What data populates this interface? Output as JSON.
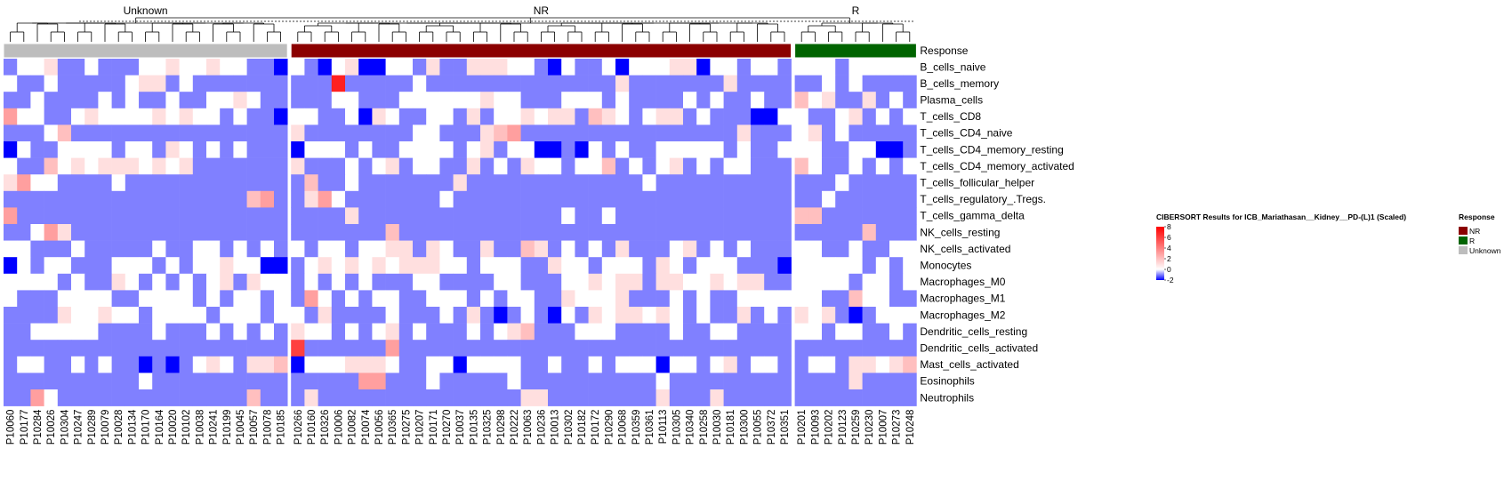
{
  "chart_data": {
    "type": "heatmap",
    "title": "",
    "groups": [
      {
        "name": "Unknown",
        "color": "#bdbdbd",
        "samples": [
          "P10060",
          "P10177",
          "P10284",
          "P10026",
          "P10304",
          "P10247",
          "P10289",
          "P10079",
          "P10028",
          "P10134",
          "P10170",
          "P10164",
          "P10020",
          "P10102",
          "P10038",
          "P10241",
          "P10199",
          "P10045",
          "P10057",
          "P10078",
          "P10185"
        ]
      },
      {
        "name": "NR",
        "color": "#8b0000",
        "samples": [
          "P10266",
          "P10160",
          "P10326",
          "P10006",
          "P10082",
          "P10074",
          "P10056",
          "P10365",
          "P10275",
          "P10207",
          "P10171",
          "P10270",
          "P10037",
          "P10135",
          "P10325",
          "P10298",
          "P10222",
          "P10063",
          "P10236",
          "P10013",
          "P10302",
          "P10182",
          "P10172",
          "P10290",
          "P10068",
          "P10359",
          "P10361",
          "P10113",
          "P10305",
          "P10340",
          "P10258",
          "P10030",
          "P10181",
          "P10300",
          "P10055",
          "P10372",
          "P10351"
        ]
      },
      {
        "name": "R",
        "color": "#006400",
        "samples": [
          "P10201",
          "P10093",
          "P10202",
          "P10123",
          "P10259",
          "P10230",
          "P10007",
          "P10273",
          "P10248"
        ]
      }
    ],
    "annotation_row_label": "Response",
    "rows": [
      "B_cells_naive",
      "B_cells_memory",
      "Plasma_cells",
      "T_cells_CD8",
      "T_cells_CD4_naive",
      "T_cells_CD4_memory_resting",
      "T_cells_CD4_memory_activated",
      "T_cells_follicular_helper",
      "T_cells_regulatory_.Tregs.",
      "T_cells_gamma_delta",
      "NK_cells_resting",
      "NK_cells_activated",
      "Monocytes",
      "Macrophages_M0",
      "Macrophages_M1",
      "Macrophages_M2",
      "Dendritic_cells_resting",
      "Dendritic_cells_activated",
      "Mast_cells_activated",
      "Eosinophils",
      "Neutrophils"
    ],
    "values": [
      [
        -1,
        0,
        0,
        1,
        -1,
        -1,
        0,
        -1,
        -1,
        -1,
        0,
        0,
        1,
        0,
        0,
        1,
        0,
        0,
        -1,
        -1,
        -2,
        0,
        -1,
        -2,
        0,
        1,
        -2,
        -2,
        0,
        0,
        -1,
        1,
        -1,
        -1,
        1,
        1,
        1,
        0,
        0,
        -1,
        -2,
        0,
        -1,
        -1,
        0,
        -2,
        0,
        0,
        0,
        1,
        1,
        -2,
        0,
        0,
        -1,
        0,
        0,
        -1,
        0,
        0,
        0,
        -1,
        0,
        0,
        0,
        0,
        0
      ],
      [
        0,
        -1,
        -1,
        0,
        -1,
        -1,
        -1,
        -1,
        -1,
        0,
        1,
        1,
        -1,
        0,
        -1,
        -1,
        -1,
        -1,
        -1,
        -1,
        -1,
        -1,
        -1,
        -1,
        7,
        -1,
        -1,
        -1,
        -1,
        -1,
        0,
        -1,
        -1,
        -1,
        -1,
        -1,
        -1,
        -1,
        -1,
        -1,
        -1,
        -1,
        -1,
        -1,
        -1,
        1,
        -1,
        -1,
        -1,
        -1,
        -1,
        -1,
        -1,
        1,
        -1,
        -1,
        -1,
        -1,
        -1,
        -1,
        0,
        -1,
        0,
        -1,
        -1,
        -1,
        -1
      ],
      [
        -1,
        -1,
        0,
        -1,
        -1,
        -1,
        -1,
        0,
        -1,
        0,
        -1,
        -1,
        0,
        -1,
        -1,
        0,
        0,
        1,
        0,
        -1,
        -1,
        -1,
        -1,
        -1,
        0,
        0,
        -1,
        -1,
        -1,
        0,
        0,
        0,
        0,
        0,
        0,
        1,
        0,
        0,
        -1,
        -1,
        -1,
        0,
        0,
        0,
        -1,
        0,
        -1,
        -1,
        -1,
        -1,
        0,
        -1,
        0,
        -1,
        -1,
        0,
        -1,
        -1,
        2,
        0,
        1,
        -1,
        -1,
        1,
        -1,
        0,
        -1
      ],
      [
        3,
        0,
        0,
        -1,
        -1,
        0,
        1,
        0,
        0,
        0,
        0,
        1,
        0,
        1,
        0,
        0,
        -1,
        0,
        -1,
        -1,
        -2,
        0,
        0,
        -1,
        -1,
        0,
        -2,
        1,
        0,
        -1,
        -1,
        0,
        0,
        -1,
        1,
        -1,
        0,
        0,
        1,
        0,
        1,
        1,
        -1,
        2,
        1,
        0,
        -1,
        0,
        1,
        1,
        -1,
        0,
        -1,
        -1,
        -1,
        -2,
        -2,
        0,
        0,
        -1,
        -1,
        0,
        1,
        -1,
        0,
        -1,
        0
      ],
      [
        -1,
        -1,
        -1,
        0,
        2,
        -1,
        -1,
        -1,
        -1,
        -1,
        -1,
        -1,
        -1,
        -1,
        -1,
        -1,
        -1,
        -1,
        -1,
        -1,
        -1,
        1,
        -1,
        -1,
        -1,
        -1,
        -1,
        -1,
        -1,
        -1,
        0,
        0,
        -1,
        -1,
        -1,
        1,
        2,
        3,
        -1,
        -1,
        -1,
        -1,
        -1,
        -1,
        -1,
        -1,
        -1,
        -1,
        -1,
        -1,
        -1,
        -1,
        -1,
        -1,
        1,
        -1,
        -1,
        -1,
        0,
        1,
        -1,
        0,
        -1,
        -1,
        -1,
        -1,
        -1
      ],
      [
        -2,
        0,
        -1,
        -1,
        0,
        0,
        0,
        0,
        -1,
        0,
        0,
        -1,
        1,
        0,
        -1,
        0,
        -1,
        0,
        -1,
        -1,
        -1,
        -2,
        0,
        0,
        0,
        -1,
        0,
        -1,
        -1,
        0,
        0,
        0,
        0,
        -1,
        0,
        1,
        -1,
        0,
        0,
        -2,
        -2,
        -1,
        -2,
        0,
        -1,
        0,
        -1,
        -1,
        0,
        0,
        0,
        0,
        0,
        -1,
        0,
        -1,
        -1,
        0,
        0,
        0,
        -1,
        -1,
        0,
        0,
        -2,
        -2,
        -1
      ],
      [
        0,
        -1,
        -1,
        2,
        0,
        1,
        0,
        1,
        1,
        1,
        0,
        1,
        0,
        1,
        -1,
        -1,
        -1,
        -1,
        -1,
        -1,
        -1,
        1,
        -1,
        -1,
        -1,
        0,
        -1,
        0,
        1,
        -1,
        0,
        0,
        -1,
        -1,
        1,
        -1,
        0,
        -1,
        1,
        0,
        0,
        -1,
        0,
        0,
        2,
        -1,
        0,
        -1,
        0,
        1,
        -1,
        0,
        -1,
        0,
        0,
        -1,
        -1,
        -1,
        2,
        0,
        -1,
        -1,
        0,
        -1,
        0,
        -1,
        0
      ],
      [
        1,
        3,
        0,
        0,
        -1,
        -1,
        -1,
        -1,
        0,
        -1,
        -1,
        -1,
        -1,
        -1,
        -1,
        -1,
        -1,
        -1,
        -1,
        -1,
        -1,
        -1,
        2,
        -1,
        -1,
        0,
        -1,
        -1,
        -1,
        -1,
        -1,
        -1,
        -1,
        1,
        -1,
        -1,
        -1,
        -1,
        -1,
        -1,
        -1,
        -1,
        -1,
        -1,
        -1,
        -1,
        -1,
        0,
        -1,
        -1,
        -1,
        -1,
        -1,
        -1,
        -1,
        -1,
        -1,
        -1,
        -1,
        -1,
        -1,
        0,
        -1,
        -1,
        -1,
        -1,
        -1
      ],
      [
        -1,
        -1,
        -1,
        -1,
        -1,
        -1,
        -1,
        -1,
        -1,
        -1,
        -1,
        -1,
        -1,
        -1,
        -1,
        -1,
        -1,
        -1,
        2,
        3,
        -1,
        -1,
        1,
        3,
        0,
        -1,
        -1,
        -1,
        -1,
        -1,
        -1,
        -1,
        0,
        -1,
        -1,
        -1,
        -1,
        -1,
        -1,
        -1,
        -1,
        -1,
        -1,
        -1,
        -1,
        -1,
        -1,
        -1,
        -1,
        -1,
        -1,
        -1,
        -1,
        -1,
        -1,
        -1,
        -1,
        -1,
        -1,
        -1,
        0,
        -1,
        -1,
        -1,
        -1,
        -1,
        -1
      ],
      [
        3,
        -1,
        -1,
        -1,
        -1,
        -1,
        -1,
        -1,
        -1,
        -1,
        -1,
        -1,
        -1,
        -1,
        -1,
        -1,
        -1,
        -1,
        -1,
        -1,
        -1,
        -1,
        -1,
        -1,
        -1,
        1,
        -1,
        -1,
        -1,
        -1,
        -1,
        -1,
        -1,
        -1,
        -1,
        -1,
        -1,
        -1,
        -1,
        -1,
        -1,
        0,
        -1,
        -1,
        0,
        -1,
        -1,
        -1,
        -1,
        -1,
        -1,
        -1,
        -1,
        -1,
        -1,
        -1,
        -1,
        -1,
        2,
        2,
        -1,
        -1,
        -1,
        -1,
        -1,
        -1,
        -1
      ],
      [
        -1,
        -1,
        0,
        3,
        1,
        -1,
        -1,
        -1,
        -1,
        -1,
        -1,
        -1,
        -1,
        -1,
        -1,
        -1,
        -1,
        -1,
        -1,
        -1,
        -1,
        -1,
        -1,
        -1,
        -1,
        -1,
        -1,
        -1,
        2,
        -1,
        -1,
        -1,
        -1,
        -1,
        -1,
        -1,
        -1,
        -1,
        -1,
        -1,
        -1,
        -1,
        -1,
        -1,
        -1,
        -1,
        -1,
        -1,
        -1,
        -1,
        -1,
        -1,
        -1,
        -1,
        -1,
        -1,
        -1,
        -1,
        -1,
        -1,
        -1,
        -1,
        -1,
        2,
        -1,
        -1,
        -1
      ],
      [
        0,
        0,
        -1,
        -1,
        -1,
        0,
        -1,
        -1,
        -1,
        -1,
        -1,
        0,
        -1,
        -1,
        0,
        0,
        -1,
        0,
        -1,
        0,
        -1,
        0,
        -1,
        0,
        0,
        -1,
        0,
        0,
        1,
        1,
        -1,
        1,
        0,
        -1,
        -1,
        1,
        -1,
        -1,
        2,
        1,
        -1,
        0,
        -1,
        0,
        -1,
        1,
        -1,
        -1,
        -1,
        0,
        1,
        -1,
        0,
        -1,
        0,
        -1,
        -1,
        -1,
        0,
        0,
        -1,
        -1,
        0,
        -1,
        -1,
        0,
        0
      ],
      [
        -2,
        0,
        -1,
        0,
        0,
        -1,
        -1,
        -1,
        0,
        0,
        0,
        -1,
        0,
        -1,
        0,
        0,
        1,
        0,
        0,
        -2,
        -2,
        -1,
        0,
        1,
        0,
        1,
        0,
        1,
        0,
        1,
        1,
        1,
        0,
        0,
        -1,
        0,
        0,
        0,
        -1,
        -1,
        1,
        0,
        0,
        -1,
        0,
        0,
        0,
        -1,
        1,
        0,
        -1,
        0,
        0,
        0,
        -1,
        -1,
        -1,
        -2,
        0,
        0,
        0,
        0,
        0,
        -1,
        0,
        -1,
        0
      ],
      [
        0,
        0,
        0,
        0,
        -1,
        0,
        -1,
        -1,
        1,
        0,
        -1,
        0,
        -1,
        0,
        -1,
        0,
        1,
        -1,
        1,
        0,
        0,
        -1,
        0,
        -1,
        0,
        -1,
        0,
        -1,
        -1,
        -1,
        0,
        0,
        -1,
        -1,
        -1,
        -1,
        0,
        0,
        -1,
        -1,
        -1,
        0,
        0,
        1,
        0,
        1,
        1,
        -1,
        1,
        1,
        0,
        0,
        1,
        0,
        1,
        1,
        -1,
        -1,
        0,
        0,
        0,
        0,
        -1,
        0,
        0,
        -1,
        0
      ],
      [
        0,
        -1,
        -1,
        -1,
        0,
        0,
        0,
        0,
        -1,
        -1,
        0,
        0,
        0,
        0,
        -1,
        0,
        -1,
        0,
        0,
        -1,
        0,
        -1,
        3,
        0,
        -1,
        0,
        -1,
        0,
        0,
        -1,
        -1,
        0,
        0,
        0,
        -1,
        0,
        -1,
        0,
        0,
        -1,
        -1,
        1,
        0,
        0,
        0,
        1,
        -1,
        -1,
        -1,
        0,
        -1,
        0,
        -1,
        -1,
        0,
        0,
        0,
        0,
        0,
        0,
        -1,
        -1,
        2,
        0,
        0,
        -1,
        -1
      ],
      [
        -1,
        -1,
        -1,
        -1,
        1,
        0,
        0,
        1,
        0,
        0,
        -1,
        0,
        0,
        0,
        0,
        -1,
        0,
        0,
        0,
        -1,
        0,
        0,
        -1,
        1,
        -1,
        -1,
        -1,
        -1,
        0,
        -1,
        -1,
        -1,
        0,
        -1,
        1,
        -1,
        -2,
        -1,
        0,
        -1,
        -2,
        0,
        -1,
        1,
        0,
        1,
        1,
        0,
        1,
        0,
        -1,
        0,
        -1,
        -1,
        1,
        -1,
        0,
        -1,
        1,
        0,
        1,
        -1,
        -2,
        -1,
        0,
        0,
        0
      ],
      [
        -1,
        -1,
        0,
        0,
        0,
        0,
        0,
        -1,
        -1,
        -1,
        -1,
        0,
        -1,
        -1,
        -1,
        0,
        -1,
        0,
        -1,
        0,
        -1,
        1,
        0,
        0,
        -1,
        0,
        -1,
        0,
        1,
        -1,
        0,
        -1,
        -1,
        -1,
        0,
        -1,
        0,
        1,
        2,
        -1,
        -1,
        -1,
        0,
        0,
        0,
        -1,
        -1,
        -1,
        -1,
        0,
        -1,
        -1,
        0,
        0,
        -1,
        -1,
        -1,
        -1,
        0,
        0,
        -1,
        0,
        0,
        -1,
        -1,
        0,
        -1
      ],
      [
        -1,
        -1,
        -1,
        -1,
        -1,
        -1,
        -1,
        -1,
        -1,
        -1,
        -1,
        -1,
        -1,
        -1,
        -1,
        -1,
        -1,
        -1,
        -1,
        -1,
        -1,
        6,
        -1,
        -1,
        -1,
        -1,
        -1,
        -1,
        3,
        -1,
        -1,
        -1,
        -1,
        -1,
        -1,
        -1,
        -1,
        -1,
        -1,
        -1,
        -1,
        -1,
        -1,
        -1,
        -1,
        -1,
        -1,
        -1,
        -1,
        -1,
        -1,
        -1,
        -1,
        -1,
        -1,
        -1,
        -1,
        -1,
        -1,
        -1,
        -1,
        -1,
        -1,
        -1,
        -1,
        -1,
        -1
      ],
      [
        -1,
        0,
        0,
        -1,
        -1,
        0,
        -1,
        0,
        -1,
        -1,
        -2,
        -1,
        -2,
        -1,
        0,
        1,
        0,
        -1,
        1,
        1,
        2,
        -2,
        0,
        0,
        0,
        1,
        1,
        1,
        0,
        -1,
        -1,
        0,
        0,
        -2,
        0,
        0,
        0,
        0,
        -1,
        -1,
        0,
        -1,
        -1,
        0,
        -1,
        0,
        0,
        0,
        -2,
        0,
        0,
        -1,
        0,
        1,
        -1,
        0,
        0,
        -1,
        -1,
        0,
        0,
        -1,
        1,
        1,
        0,
        1,
        2
      ],
      [
        -1,
        -1,
        -1,
        -1,
        -1,
        -1,
        -1,
        -1,
        -1,
        -1,
        0,
        -1,
        -1,
        -1,
        -1,
        -1,
        -1,
        -1,
        -1,
        -1,
        -1,
        -1,
        -1,
        -1,
        -1,
        -1,
        3,
        3,
        -1,
        -1,
        -1,
        0,
        -1,
        -1,
        -1,
        -1,
        -1,
        0,
        -1,
        -1,
        -1,
        -1,
        -1,
        -1,
        -1,
        -1,
        -1,
        -1,
        0,
        -1,
        -1,
        -1,
        -1,
        -1,
        -1,
        -1,
        -1,
        -1,
        -1,
        -1,
        -1,
        -1,
        1,
        -1,
        -1,
        -1,
        -1
      ],
      [
        -1,
        -1,
        3,
        0,
        -1,
        -1,
        -1,
        -1,
        -1,
        -1,
        -1,
        -1,
        -1,
        -1,
        -1,
        -1,
        -1,
        -1,
        2,
        -1,
        -1,
        -1,
        1,
        -1,
        -1,
        -1,
        -1,
        -1,
        -1,
        -1,
        -1,
        -1,
        -1,
        -1,
        -1,
        -1,
        -1,
        -1,
        1,
        1,
        -1,
        -1,
        -1,
        -1,
        -1,
        -1,
        -1,
        -1,
        1,
        -1,
        -1,
        -1,
        1,
        -1,
        -1,
        -1,
        -1,
        -1,
        -1,
        -1,
        -1,
        -1,
        -1,
        -1,
        -1,
        -1,
        -1
      ]
    ],
    "colorbar": {
      "title": "CIBERSORT Results for ICB_Mariathasan__Kidney__PD-(L)1 (Scaled)",
      "range": [
        -2,
        8
      ],
      "ticks": [
        8,
        6,
        4,
        2,
        0,
        -2
      ],
      "colors": {
        "low": "#0000ff",
        "mid": "#ffffff",
        "high": "#ff0000"
      }
    },
    "response_legend": {
      "title": "Response",
      "items": [
        {
          "label": "NR",
          "color": "#8b0000"
        },
        {
          "label": "R",
          "color": "#006400"
        },
        {
          "label": "Unknown",
          "color": "#bdbdbd"
        }
      ]
    }
  }
}
